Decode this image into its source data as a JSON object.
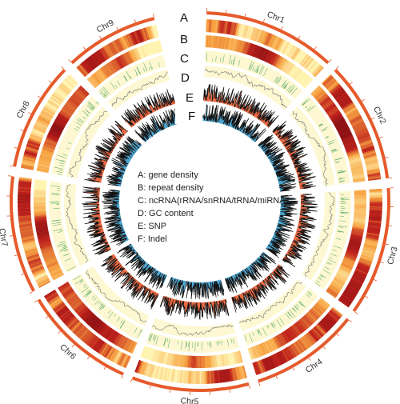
{
  "colors": {
    "chromosome_bar": "#e65a2b",
    "heat_low": "#fff3b0",
    "heat_mid": "#f7a341",
    "heat_high": "#c0211a",
    "heat_max": "#8e0f12",
    "track_bg": "#fdf8d2",
    "ncrna_mark": "#3f9e54",
    "gc_line": "#777777",
    "snp_fill": "#ea6a44",
    "indel_fill": "#4ea6cf",
    "signal_line": "#111111"
  },
  "chromosomes": [
    {
      "name": "Chr1",
      "length": 34
    },
    {
      "name": "Chr2",
      "length": 31
    },
    {
      "name": "Chr3",
      "length": 33
    },
    {
      "name": "Chr4",
      "length": 28
    },
    {
      "name": "Chr5",
      "length": 30
    },
    {
      "name": "Chr6",
      "length": 29
    },
    {
      "name": "Chr7",
      "length": 30
    },
    {
      "name": "Chr8",
      "length": 28
    },
    {
      "name": "Chr9",
      "length": 24
    }
  ],
  "tracks": [
    {
      "letter": "A",
      "description": "gene density"
    },
    {
      "letter": "B",
      "description": "repeat density"
    },
    {
      "letter": "C",
      "description": "ncRNA(rRNA/snRNA/tRNA/miRNA)"
    },
    {
      "letter": "D",
      "description": "GC content"
    },
    {
      "letter": "E",
      "description": "SNP"
    },
    {
      "letter": "F",
      "description": "Indel"
    }
  ],
  "legend": [
    "A: gene density",
    "B: repeat density",
    "C: ncRNA(rRNA/snRNA/tRNA/miRNA)",
    "D: GC content",
    "E: SNP",
    "F: Indel"
  ]
}
